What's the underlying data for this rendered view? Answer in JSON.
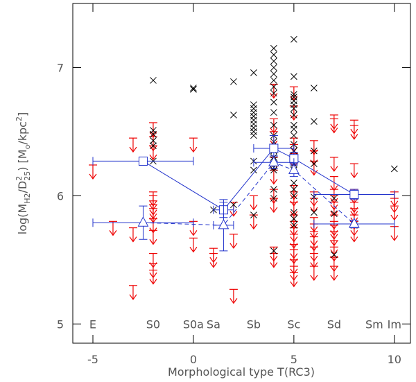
{
  "chart_data": {
    "type": "scatter",
    "xlabel": "Morphological type T(RC3)",
    "ylabel": [
      "log(M",
      "H2",
      "/D",
      "2",
      "25",
      ") [M",
      "o",
      "/kpc",
      "2",
      "]"
    ],
    "xlim": [
      -6,
      10.8
    ],
    "ylim": [
      4.85,
      7.5
    ],
    "xticks": [
      -5,
      0,
      5,
      10
    ],
    "yticks": [
      5,
      6,
      7
    ],
    "annotations": [
      {
        "text": "E",
        "x": -5,
        "y": 5
      },
      {
        "text": "S0",
        "x": -2,
        "y": 5
      },
      {
        "text": "S0a",
        "x": 0,
        "y": 5
      },
      {
        "text": "Sa",
        "x": 1,
        "y": 5
      },
      {
        "text": "Sb",
        "x": 3,
        "y": 5
      },
      {
        "text": "Sc",
        "x": 5,
        "y": 5
      },
      {
        "text": "Sd",
        "x": 7,
        "y": 5
      },
      {
        "text": "Sm",
        "x": 9,
        "y": 5
      },
      {
        "text": "Im",
        "x": 10,
        "y": 5
      }
    ],
    "detections": {
      "color": "#000000",
      "x": [
        -2,
        -2,
        -2,
        -2,
        -2,
        -2,
        0,
        0,
        1,
        2,
        2,
        2,
        3,
        3,
        3,
        3,
        3,
        3,
        3,
        3,
        3,
        3,
        3,
        3,
        3,
        4,
        4,
        4,
        4,
        4,
        4,
        4,
        4,
        4,
        4,
        4,
        4,
        4,
        4,
        4,
        4,
        4,
        4,
        4,
        4,
        4,
        4,
        5,
        5,
        5,
        5,
        5,
        5,
        5,
        5,
        5,
        5,
        5,
        5,
        5,
        5,
        5,
        5,
        5,
        5,
        5,
        5,
        5,
        5,
        6,
        6,
        6,
        6,
        6,
        6,
        7,
        7,
        7,
        8,
        10
      ],
      "y": [
        6.9,
        6.51,
        6.48,
        6.43,
        6.39,
        6.27,
        6.83,
        6.84,
        5.89,
        6.89,
        6.63,
        5.93,
        6.96,
        6.71,
        6.68,
        6.65,
        6.62,
        6.59,
        6.56,
        6.53,
        6.5,
        6.47,
        6.27,
        6.2,
        5.85,
        7.15,
        7.1,
        7.05,
        7.0,
        6.95,
        6.9,
        6.85,
        6.8,
        6.73,
        6.65,
        6.55,
        6.47,
        6.42,
        6.35,
        6.3,
        6.28,
        6.25,
        6.22,
        6.2,
        6.05,
        5.98,
        5.57,
        7.22,
        6.93,
        6.79,
        6.77,
        6.74,
        6.71,
        6.68,
        6.63,
        6.55,
        6.52,
        6.47,
        6.4,
        6.35,
        6.3,
        6.25,
        6.2,
        6.1,
        6.05,
        6.0,
        5.87,
        5.82,
        5.77,
        6.84,
        6.58,
        6.35,
        6.25,
        5.99,
        5.87,
        5.98,
        5.86,
        5.54,
        5.77,
        6.21
      ]
    },
    "upper_limits": {
      "color": "#ee0000",
      "x": [
        -5,
        -4,
        -3,
        -3,
        -3,
        -2,
        -2,
        -2,
        -2,
        -2,
        -2,
        -2,
        -2,
        -2,
        -2,
        -2,
        -2,
        -2,
        0,
        0,
        0,
        1,
        1,
        2,
        2,
        2,
        3,
        3,
        4,
        4,
        4,
        4,
        4,
        4,
        4,
        4,
        4,
        5,
        5,
        5,
        5,
        5,
        5,
        5,
        5,
        5,
        5,
        5,
        5,
        5,
        5,
        5,
        5,
        5,
        6,
        6,
        6,
        6,
        6,
        6,
        6,
        6,
        6,
        6,
        6,
        6,
        7,
        7,
        7,
        7,
        7,
        7,
        7,
        7,
        7,
        7,
        7,
        7,
        7,
        7,
        7,
        8,
        8,
        8,
        8,
        8,
        8,
        8,
        8,
        8,
        8,
        10,
        10,
        10,
        10
      ],
      "y": [
        6.24,
        5.8,
        6.45,
        5.75,
        5.3,
        6.57,
        6.46,
        6.39,
        6.03,
        6.0,
        5.96,
        5.93,
        5.9,
        5.82,
        5.73,
        5.55,
        5.47,
        5.42,
        6.45,
        5.8,
        5.67,
        5.59,
        5.55,
        5.95,
        5.7,
        5.27,
        6.0,
        5.85,
        6.87,
        6.6,
        6.5,
        6.3,
        6.2,
        6.05,
        5.98,
        5.6,
        5.55,
        6.85,
        6.7,
        6.45,
        6.4,
        6.33,
        6.08,
        6.03,
        5.95,
        5.85,
        5.8,
        5.75,
        5.7,
        5.62,
        5.58,
        5.5,
        5.45,
        5.4,
        6.43,
        6.35,
        6.27,
        6.03,
        5.98,
        5.83,
        5.78,
        5.72,
        5.68,
        5.6,
        5.55,
        5.45,
        6.63,
        6.6,
        6.3,
        6.15,
        6.05,
        6.0,
        5.95,
        5.85,
        5.8,
        5.77,
        5.72,
        5.65,
        5.6,
        5.52,
        5.45,
        6.59,
        6.55,
        6.25,
        6.05,
        5.98,
        5.95,
        5.9,
        5.85,
        5.8,
        5.75,
        6.03,
        5.98,
        5.92,
        5.76
      ]
    },
    "binned": [
      {
        "marker": "square",
        "color": "#2233cc",
        "dashed": false,
        "x": [
          -2.5,
          1.5,
          4,
          5,
          8
        ],
        "y": [
          6.27,
          5.89,
          6.37,
          6.29,
          6.01
        ],
        "xerr": [
          2.5,
          0.5,
          1,
          0,
          2
        ],
        "yerr": [
          0.03,
          0.06,
          0.1,
          0.05,
          0.04
        ]
      },
      {
        "marker": "triangle",
        "color": "#2233cc",
        "dashed": true,
        "x": [
          -2.5,
          1.5,
          4,
          5,
          8
        ],
        "y": [
          5.79,
          5.77,
          6.26,
          6.2,
          5.78
        ],
        "xerr": [
          2.5,
          0.5,
          1,
          0,
          2
        ],
        "yerr": [
          0.13,
          0.2,
          0.05,
          0.05,
          0.03
        ]
      }
    ]
  }
}
